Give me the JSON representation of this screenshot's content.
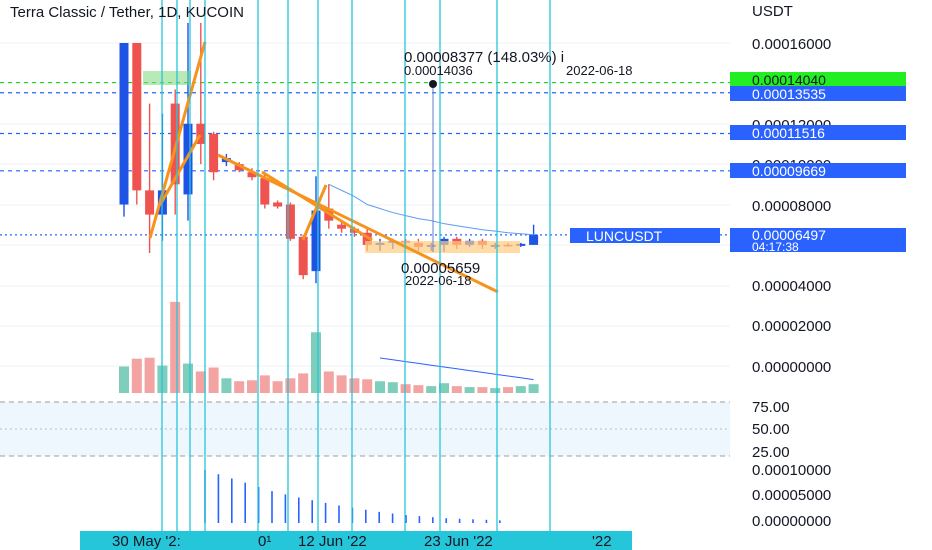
{
  "title": "Terra Classic / Tether, 1D, KUCOIN",
  "currency": "USDT",
  "price_axis": [
    "0.00016000",
    "0.00012000",
    "0.00010000",
    "0.00008000",
    "0.00004000",
    "0.00002000",
    "0.00000000"
  ],
  "rsi_axis": [
    "75.00",
    "50.00",
    "25.00"
  ],
  "lower_axis": [
    "0.00010000",
    "0.00005000",
    "0.00000000"
  ],
  "date_labels": [
    "30 May '2:",
    "0¹",
    "12 Jun '22",
    "23 Jun '22",
    "'22"
  ],
  "price_tags": [
    {
      "text": "0.00014040",
      "bg": "#22ee22",
      "fg": "#131722"
    },
    {
      "text": "0.00013535",
      "bg": "#2962ff",
      "fg": "#ffffff"
    },
    {
      "text": "0.00011516",
      "bg": "#2962ff",
      "fg": "#ffffff"
    },
    {
      "text": "0.00009669",
      "bg": "#2962ff",
      "fg": "#ffffff"
    }
  ],
  "symbol_tag": "LUNCUSDT",
  "last_price": "0.00006497",
  "countdown": "04:17:38",
  "annotation_high": {
    "change": "0.00008377 (148.03%) i",
    "price": "0.00014036",
    "date": "2022-06-18"
  },
  "annotation_low": {
    "price": "0.00005659",
    "date": "2022-06-18"
  },
  "colors": {
    "up": "#1e53e5",
    "down": "#ef5350",
    "trend": "#f7931a",
    "vline": "#26c6da",
    "vol_up": "#7fcdbb",
    "vol_down": "#f4a3a3"
  },
  "chart_data": {
    "type": "candlestick",
    "title": "Terra Classic / Tether, 1D, KUCOIN",
    "unit": "USDT",
    "ylim": [
      0,
      0.00017
    ],
    "candles": [
      {
        "o": 8e-05,
        "h": 0.00016,
        "l": 7.4e-05,
        "c": 0.00016
      },
      {
        "o": 0.00016,
        "h": 0.00016,
        "l": 8e-05,
        "c": 8.7e-05
      },
      {
        "o": 8.7e-05,
        "h": 0.00013,
        "l": 5.6e-05,
        "c": 7.5e-05
      },
      {
        "o": 7.5e-05,
        "h": 0.000125,
        "l": 6.2e-05,
        "c": 8.7e-05
      },
      {
        "o": 0.00013,
        "h": 0.000137,
        "l": 7.5e-05,
        "c": 9e-05
      },
      {
        "o": 8.5e-05,
        "h": 0.00017,
        "l": 7.2e-05,
        "c": 0.00012
      },
      {
        "o": 0.00012,
        "h": 0.00017,
        "l": 0.0001,
        "c": 0.00011
      },
      {
        "o": 0.000115,
        "h": 0.000116,
        "l": 9.2e-05,
        "c": 9.6e-05
      },
      {
        "o": 0.000101,
        "h": 0.000105,
        "l": 9.9e-05,
        "c": 0.000103
      },
      {
        "o": 0.0001,
        "h": 0.000101,
        "l": 9.6e-05,
        "c": 9.7e-05
      },
      {
        "o": 9.6e-05,
        "h": 9.8e-05,
        "l": 9.2e-05,
        "c": 9.35e-05
      },
      {
        "o": 9.3e-05,
        "h": 9.6e-05,
        "l": 7.8e-05,
        "c": 8e-05
      },
      {
        "o": 8.1e-05,
        "h": 8.2e-05,
        "l": 7.8e-05,
        "c": 7.9e-05
      },
      {
        "o": 8e-05,
        "h": 8.1e-05,
        "l": 6.2e-05,
        "c": 6.3e-05
      },
      {
        "o": 6.4e-05,
        "h": 6.5e-05,
        "l": 4.3e-05,
        "c": 4.5e-05
      },
      {
        "o": 4.7e-05,
        "h": 9.4e-05,
        "l": 4.1e-05,
        "c": 7.7e-05
      },
      {
        "o": 7.8e-05,
        "h": 9e-05,
        "l": 6.8e-05,
        "c": 7.2e-05
      },
      {
        "o": 7e-05,
        "h": 7.2e-05,
        "l": 6.6e-05,
        "c": 6.8e-05
      },
      {
        "o": 6.8e-05,
        "h": 6.9e-05,
        "l": 6.4e-05,
        "c": 6.6e-05
      },
      {
        "o": 6.6e-05,
        "h": 6.8e-05,
        "l": 5.7e-05,
        "c": 6e-05
      },
      {
        "o": 6e-05,
        "h": 6.3e-05,
        "l": 5.7e-05,
        "c": 6.1e-05
      },
      {
        "o": 6.1e-05,
        "h": 6.3e-05,
        "l": 5.8e-05,
        "c": 6.2e-05
      },
      {
        "o": 6.2e-05,
        "h": 6.3e-05,
        "l": 5.9e-05,
        "c": 6.1e-05
      },
      {
        "o": 6.1e-05,
        "h": 6.3e-05,
        "l": 5.7e-05,
        "c": 5.9e-05
      },
      {
        "o": 5.9e-05,
        "h": 6.1e-05,
        "l": 5.7e-05,
        "c": 6e-05
      },
      {
        "o": 6e-05,
        "h": 6.4e-05,
        "l": 5.66e-05,
        "c": 6.3e-05
      },
      {
        "o": 6.3e-05,
        "h": 6.4e-05,
        "l": 5.8e-05,
        "c": 6e-05
      },
      {
        "o": 6e-05,
        "h": 6.3e-05,
        "l": 5.9e-05,
        "c": 6.2e-05
      },
      {
        "o": 6.2e-05,
        "h": 6.3e-05,
        "l": 5.8e-05,
        "c": 6e-05
      },
      {
        "o": 5.9e-05,
        "h": 6.1e-05,
        "l": 5.8e-05,
        "c": 6e-05
      },
      {
        "o": 6e-05,
        "h": 6.1e-05,
        "l": 5.9e-05,
        "c": 5.95e-05
      },
      {
        "o": 5.95e-05,
        "h": 6.1e-05,
        "l": 5.9e-05,
        "c": 6.05e-05
      },
      {
        "o": 6e-05,
        "h": 7e-05,
        "l": 6e-05,
        "c": 6.5e-05
      }
    ],
    "volume_rel": [
      0.27,
      0.35,
      0.36,
      0.28,
      0.93,
      0.3,
      0.22,
      0.26,
      0.15,
      0.12,
      0.13,
      0.18,
      0.12,
      0.15,
      0.2,
      0.62,
      0.22,
      0.18,
      0.15,
      0.14,
      0.12,
      0.11,
      0.09,
      0.08,
      0.07,
      0.1,
      0.07,
      0.06,
      0.06,
      0.05,
      0.06,
      0.07,
      0.09
    ],
    "lower_values": [
      0.0001,
      9.2e-05,
      8.4e-05,
      7.6e-05,
      6.8e-05,
      6e-05,
      5.4e-05,
      4.8e-05,
      4.3e-05,
      3.8e-05,
      3.3e-05,
      2.9e-05,
      2.5e-05,
      2.1e-05,
      1.8e-05,
      1.5e-05,
      1.3e-05,
      1.1e-05,
      9e-06,
      8e-06,
      7e-06,
      6e-06,
      5e-06
    ],
    "lower_ylim": [
      0,
      0.0001
    ],
    "rsi_ylim": [
      0,
      100
    ],
    "horizontal_levels": [
      0.0001404,
      0.00013535,
      0.00011516,
      9.669e-05,
      6.497e-05
    ],
    "ma": [
      9e-05,
      8.7e-05,
      8.4e-05,
      8e-05,
      7.8e-05,
      7.6e-05,
      7.45e-05,
      7.3e-05,
      7.2e-05,
      7.05e-05,
      6.95e-05,
      6.85e-05,
      6.75e-05,
      6.68e-05,
      6.6e-05,
      6.55e-05,
      6.5e-05
    ],
    "grid": true,
    "legend": "none"
  }
}
